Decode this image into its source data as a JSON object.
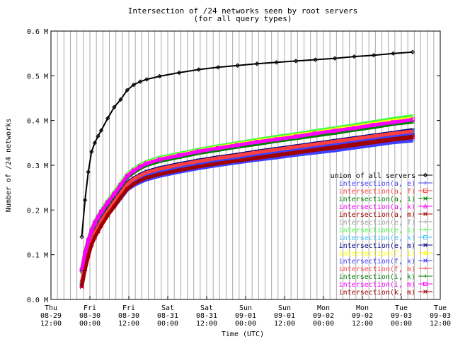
{
  "chart_data": {
    "type": "line",
    "title": "Intersection of /24 networks seen by root servers",
    "subtitle": "(for all query types)",
    "xlabel": "Time (UTC)",
    "ylabel": "Number of /24 networks",
    "x_tick_labels": [
      [
        "Thu",
        "08-29",
        "12:00"
      ],
      [
        "Fri",
        "08-30",
        "00:00"
      ],
      [
        "Fri",
        "08-30",
        "12:00"
      ],
      [
        "Sat",
        "08-31",
        "00:00"
      ],
      [
        "Sat",
        "08-31",
        "12:00"
      ],
      [
        "Sun",
        "09-01",
        "00:00"
      ],
      [
        "Sun",
        "09-01",
        "12:00"
      ],
      [
        "Mon",
        "09-02",
        "00:00"
      ],
      [
        "Mon",
        "09-02",
        "12:00"
      ],
      [
        "Tue",
        "09-03",
        "00:00"
      ],
      [
        "Tue",
        "09-03",
        "12:00"
      ]
    ],
    "y_tick_labels": [
      "0.0 M",
      "0.1 M",
      "0.2 M",
      "0.3 M",
      "0.4 M",
      "0.5 M",
      "0.6 M"
    ],
    "xlim": [
      "2002-08-29 12:00",
      "2002-09-03 12:00"
    ],
    "ylim": [
      0,
      0.6
    ],
    "y_unit": "M",
    "grid": "vertical every 2 hours",
    "legend_position": "right-center",
    "x_start": "2002-08-29 21:30",
    "x_end": "2002-09-03 00:00",
    "x_hours": [
      0,
      1,
      2,
      3,
      4,
      5,
      6,
      8,
      10,
      12,
      14,
      16,
      18,
      20,
      24,
      30,
      36,
      42,
      48,
      54,
      60,
      66,
      72,
      78,
      84,
      90,
      96,
      102
    ],
    "series": [
      {
        "name": "union of all servers",
        "color": "#000000",
        "marker": "diamond",
        "values": [
          0.14,
          0.222,
          0.285,
          0.33,
          0.35,
          0.365,
          0.378,
          0.405,
          0.43,
          0.447,
          0.468,
          0.48,
          0.487,
          0.492,
          0.499,
          0.507,
          0.514,
          0.519,
          0.523,
          0.527,
          0.53,
          0.533,
          0.536,
          0.539,
          0.543,
          0.546,
          0.55,
          0.553
        ]
      },
      {
        "name": "intersection(a, e)",
        "color": "#4040ff",
        "marker": "plus",
        "values": [
          0.03,
          0.068,
          0.098,
          0.123,
          0.14,
          0.153,
          0.166,
          0.188,
          0.207,
          0.226,
          0.245,
          0.255,
          0.262,
          0.268,
          0.276,
          0.285,
          0.293,
          0.3,
          0.306,
          0.312,
          0.317,
          0.323,
          0.328,
          0.333,
          0.339,
          0.345,
          0.351,
          0.355
        ]
      },
      {
        "name": "intersection(a, f)",
        "color": "#ff4040",
        "marker": "square",
        "values": [
          0.032,
          0.071,
          0.101,
          0.126,
          0.143,
          0.156,
          0.169,
          0.192,
          0.212,
          0.232,
          0.252,
          0.262,
          0.27,
          0.276,
          0.284,
          0.293,
          0.301,
          0.308,
          0.314,
          0.32,
          0.326,
          0.332,
          0.338,
          0.344,
          0.35,
          0.356,
          0.362,
          0.367
        ]
      },
      {
        "name": "intersection(a, i)",
        "color": "#008000",
        "marker": "x",
        "values": [
          0.062,
          0.1,
          0.128,
          0.15,
          0.167,
          0.18,
          0.192,
          0.213,
          0.232,
          0.252,
          0.272,
          0.284,
          0.293,
          0.3,
          0.309,
          0.318,
          0.327,
          0.334,
          0.341,
          0.347,
          0.354,
          0.36,
          0.366,
          0.372,
          0.379,
          0.385,
          0.392,
          0.397
        ]
      },
      {
        "name": "intersection(a, k)",
        "color": "#ff00ff",
        "marker": "triangle",
        "values": [
          0.03,
          0.069,
          0.099,
          0.124,
          0.141,
          0.154,
          0.167,
          0.19,
          0.21,
          0.23,
          0.249,
          0.259,
          0.267,
          0.273,
          0.281,
          0.29,
          0.298,
          0.305,
          0.311,
          0.317,
          0.323,
          0.329,
          0.335,
          0.34,
          0.346,
          0.352,
          0.358,
          0.363
        ]
      },
      {
        "name": "intersection(a, m)",
        "color": "#a00000",
        "marker": "asterisk",
        "values": [
          0.033,
          0.072,
          0.102,
          0.127,
          0.144,
          0.157,
          0.17,
          0.193,
          0.213,
          0.233,
          0.253,
          0.263,
          0.271,
          0.277,
          0.285,
          0.294,
          0.302,
          0.309,
          0.315,
          0.321,
          0.327,
          0.333,
          0.339,
          0.345,
          0.351,
          0.357,
          0.363,
          0.368
        ]
      },
      {
        "name": "intersection(e, f)",
        "color": "#a0a0a0",
        "marker": "plus",
        "values": [
          0.038,
          0.078,
          0.108,
          0.133,
          0.15,
          0.163,
          0.176,
          0.199,
          0.219,
          0.239,
          0.259,
          0.27,
          0.278,
          0.285,
          0.293,
          0.302,
          0.31,
          0.317,
          0.323,
          0.33,
          0.336,
          0.342,
          0.348,
          0.354,
          0.36,
          0.366,
          0.372,
          0.378
        ]
      },
      {
        "name": "intersection(e, i)",
        "color": "#40ff40",
        "marker": "plus",
        "values": [
          0.068,
          0.106,
          0.135,
          0.157,
          0.174,
          0.187,
          0.199,
          0.221,
          0.24,
          0.26,
          0.28,
          0.292,
          0.301,
          0.308,
          0.317,
          0.326,
          0.335,
          0.343,
          0.35,
          0.357,
          0.364,
          0.37,
          0.377,
          0.383,
          0.39,
          0.397,
          0.404,
          0.41
        ]
      },
      {
        "name": "intersection(e, k)",
        "color": "#40c0ff",
        "marker": "square",
        "values": [
          0.036,
          0.076,
          0.106,
          0.131,
          0.148,
          0.161,
          0.174,
          0.197,
          0.217,
          0.237,
          0.257,
          0.268,
          0.276,
          0.283,
          0.291,
          0.3,
          0.308,
          0.315,
          0.321,
          0.328,
          0.334,
          0.34,
          0.346,
          0.352,
          0.358,
          0.364,
          0.37,
          0.376
        ]
      },
      {
        "name": "intersection(e, m)",
        "color": "#000080",
        "marker": "x",
        "values": [
          0.039,
          0.079,
          0.109,
          0.134,
          0.151,
          0.164,
          0.177,
          0.2,
          0.22,
          0.24,
          0.26,
          0.271,
          0.279,
          0.286,
          0.294,
          0.303,
          0.311,
          0.318,
          0.324,
          0.331,
          0.337,
          0.343,
          0.349,
          0.355,
          0.361,
          0.367,
          0.373,
          0.379
        ]
      },
      {
        "name": "intersection(f, i)",
        "color": "#ffff00",
        "marker": "triangle",
        "values": [
          0.066,
          0.104,
          0.132,
          0.154,
          0.171,
          0.184,
          0.196,
          0.218,
          0.237,
          0.257,
          0.277,
          0.289,
          0.298,
          0.305,
          0.314,
          0.323,
          0.332,
          0.34,
          0.347,
          0.354,
          0.36,
          0.367,
          0.373,
          0.38,
          0.386,
          0.393,
          0.4,
          0.405
        ]
      },
      {
        "name": "intersection(f, k)",
        "color": "#4040ff",
        "marker": "asterisk",
        "values": [
          0.034,
          0.074,
          0.104,
          0.129,
          0.146,
          0.159,
          0.172,
          0.195,
          0.215,
          0.235,
          0.255,
          0.265,
          0.273,
          0.28,
          0.288,
          0.297,
          0.305,
          0.312,
          0.318,
          0.325,
          0.331,
          0.337,
          0.343,
          0.349,
          0.355,
          0.361,
          0.367,
          0.372
        ]
      },
      {
        "name": "intersection(f, m)",
        "color": "#ff4040",
        "marker": "plus",
        "values": [
          0.037,
          0.077,
          0.107,
          0.132,
          0.149,
          0.162,
          0.175,
          0.198,
          0.218,
          0.238,
          0.258,
          0.269,
          0.277,
          0.284,
          0.292,
          0.301,
          0.309,
          0.316,
          0.322,
          0.329,
          0.335,
          0.341,
          0.347,
          0.353,
          0.359,
          0.365,
          0.371,
          0.376
        ]
      },
      {
        "name": "intersection(i, k)",
        "color": "#008000",
        "marker": "plus",
        "values": [
          0.064,
          0.102,
          0.13,
          0.152,
          0.169,
          0.182,
          0.194,
          0.215,
          0.234,
          0.254,
          0.274,
          0.286,
          0.295,
          0.302,
          0.311,
          0.32,
          0.329,
          0.336,
          0.343,
          0.35,
          0.356,
          0.362,
          0.369,
          0.375,
          0.381,
          0.388,
          0.394,
          0.4
        ]
      },
      {
        "name": "intersection(i, m)",
        "color": "#ff00ff",
        "marker": "square",
        "values": [
          0.066,
          0.104,
          0.132,
          0.154,
          0.171,
          0.184,
          0.196,
          0.217,
          0.236,
          0.256,
          0.276,
          0.288,
          0.297,
          0.304,
          0.313,
          0.322,
          0.331,
          0.338,
          0.345,
          0.352,
          0.358,
          0.364,
          0.371,
          0.377,
          0.383,
          0.39,
          0.396,
          0.402
        ]
      },
      {
        "name": "intersection(k, m)",
        "color": "#a00000",
        "marker": "x",
        "values": [
          0.028,
          0.067,
          0.097,
          0.122,
          0.139,
          0.152,
          0.165,
          0.188,
          0.208,
          0.228,
          0.247,
          0.258,
          0.266,
          0.272,
          0.28,
          0.289,
          0.297,
          0.304,
          0.31,
          0.316,
          0.322,
          0.328,
          0.334,
          0.339,
          0.345,
          0.351,
          0.357,
          0.362
        ]
      }
    ]
  }
}
